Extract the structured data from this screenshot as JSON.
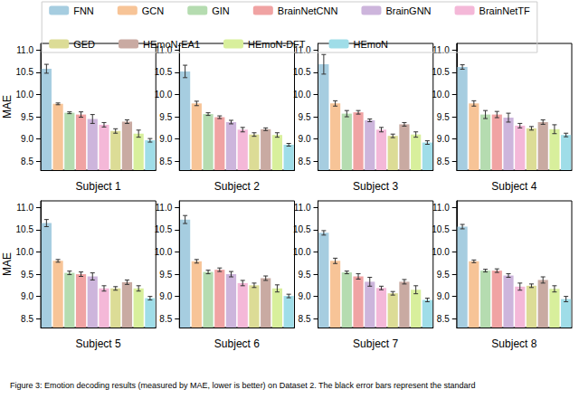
{
  "caption": "Figure 3: Emotion decoding results (measured by MAE, lower is better) on Dataset 2. The black error bars represent the standard",
  "chart_data": [
    {
      "type": "bar",
      "xlabel": "Subject 1",
      "ylabel": "MAE",
      "legend": "top",
      "tick_labels": "y",
      "grid": false,
      "categories": [
        "FNN",
        "GCN",
        "GIN",
        "BrainNetCNN",
        "BrainGNN",
        "BrainNetTF",
        "GED",
        "HEmoN-EA1",
        "HEmoN-DFT",
        "HEmoN"
      ],
      "colors": [
        "#a6cde0",
        "#f7c497",
        "#b5dcb0",
        "#f0a3a3",
        "#cdb5dc",
        "#f4b8d8",
        "#dcdc96",
        "#c9aaa2",
        "#d8ef9c",
        "#9fdde8"
      ],
      "values": [
        10.58,
        9.79,
        9.59,
        9.55,
        9.45,
        9.32,
        9.18,
        9.39,
        9.12,
        8.97
      ],
      "errors": [
        0.1,
        0.02,
        0.02,
        0.06,
        0.1,
        0.05,
        0.05,
        0.04,
        0.08,
        0.04
      ],
      "ylim": [
        8.3,
        11.15
      ],
      "yticks": [
        8.5,
        {
          "value": 9,
          "label": "9.0"
        },
        9.5,
        {
          "value": 10,
          "label": "10.0"
        },
        10.5,
        {
          "value": 11,
          "label": "11.0"
        }
      ]
    },
    {
      "type": "bar",
      "xlabel": "Subject 2",
      "legend": "top",
      "tick_labels": "y",
      "grid": false,
      "categories": [
        "FNN",
        "GCN",
        "GIN",
        "BrainNetCNN",
        "BrainGNN",
        "BrainNetTF",
        "GED",
        "HEmoN-EA1",
        "HEmoN-DFT",
        "HEmoN"
      ],
      "colors": [
        "#a6cde0",
        "#f7c497",
        "#b5dcb0",
        "#f0a3a3",
        "#cdb5dc",
        "#f4b8d8",
        "#dcdc96",
        "#c9aaa2",
        "#d8ef9c",
        "#9fdde8"
      ],
      "values": [
        10.52,
        9.8,
        9.56,
        9.49,
        9.38,
        9.21,
        9.1,
        9.22,
        9.09,
        8.87
      ],
      "errors": [
        0.14,
        0.05,
        0.03,
        0.03,
        0.04,
        0.05,
        0.04,
        0.03,
        0.05,
        0.03
      ],
      "ylim": [
        8.3,
        11.15
      ],
      "yticks": [
        8.5,
        {
          "value": 9,
          "label": "9.0"
        },
        9.5,
        {
          "value": 10,
          "label": "10.0"
        },
        10.5,
        {
          "value": 11,
          "label": "11.0"
        }
      ]
    },
    {
      "type": "bar",
      "xlabel": "Subject 3",
      "legend": "top",
      "tick_labels": "y",
      "grid": false,
      "categories": [
        "FNN",
        "GCN",
        "GIN",
        "BrainNetCNN",
        "BrainGNN",
        "BrainNetTF",
        "GED",
        "HEmoN-EA1",
        "HEmoN-DFT",
        "HEmoN"
      ],
      "colors": [
        "#a6cde0",
        "#f7c497",
        "#b5dcb0",
        "#f0a3a3",
        "#cdb5dc",
        "#f4b8d8",
        "#dcdc96",
        "#c9aaa2",
        "#d8ef9c",
        "#9fdde8"
      ],
      "values": [
        10.68,
        9.8,
        9.57,
        9.6,
        9.42,
        9.21,
        9.07,
        9.33,
        9.1,
        8.92
      ],
      "errors": [
        0.22,
        0.06,
        0.07,
        0.04,
        0.03,
        0.05,
        0.04,
        0.04,
        0.06,
        0.04
      ],
      "ylim": [
        8.3,
        11.15
      ],
      "yticks": [
        8.5,
        {
          "value": 9,
          "label": "9.0"
        },
        9.5,
        {
          "value": 10,
          "label": "10.0"
        },
        10.5,
        {
          "value": 11,
          "label": "11.0"
        }
      ]
    },
    {
      "type": "bar",
      "xlabel": "Subject 4",
      "legend": "top",
      "tick_labels": "y",
      "grid": false,
      "categories": [
        "FNN",
        "GCN",
        "GIN",
        "BrainNetCNN",
        "BrainGNN",
        "BrainNetTF",
        "GED",
        "HEmoN-EA1",
        "HEmoN-DFT",
        "HEmoN"
      ],
      "colors": [
        "#a6cde0",
        "#f7c497",
        "#b5dcb0",
        "#f0a3a3",
        "#cdb5dc",
        "#f4b8d8",
        "#dcdc96",
        "#c9aaa2",
        "#d8ef9c",
        "#9fdde8"
      ],
      "values": [
        10.62,
        9.8,
        9.55,
        9.55,
        9.48,
        9.3,
        9.24,
        9.38,
        9.22,
        9.09
      ],
      "errors": [
        0.05,
        0.06,
        0.09,
        0.07,
        0.1,
        0.05,
        0.04,
        0.05,
        0.1,
        0.04
      ],
      "ylim": [
        8.3,
        11.15
      ],
      "yticks": [
        8.5,
        {
          "value": 9,
          "label": "9.0"
        },
        9.5,
        {
          "value": 10,
          "label": "10.0"
        },
        10.5,
        {
          "value": 11,
          "label": "11.0"
        }
      ]
    },
    {
      "type": "bar",
      "xlabel": "Subject 5",
      "ylabel": "MAE",
      "legend": "top",
      "tick_labels": "y",
      "grid": false,
      "categories": [
        "FNN",
        "GCN",
        "GIN",
        "BrainNetCNN",
        "BrainGNN",
        "BrainNetTF",
        "GED",
        "HEmoN-EA1",
        "HEmoN-DFT",
        "HEmoN"
      ],
      "colors": [
        "#a6cde0",
        "#f7c497",
        "#b5dcb0",
        "#f0a3a3",
        "#cdb5dc",
        "#f4b8d8",
        "#dcdc96",
        "#c9aaa2",
        "#d8ef9c",
        "#9fdde8"
      ],
      "values": [
        10.65,
        9.8,
        9.53,
        9.5,
        9.45,
        9.18,
        9.18,
        9.32,
        9.18,
        8.96
      ],
      "errors": [
        0.08,
        0.03,
        0.04,
        0.05,
        0.08,
        0.06,
        0.04,
        0.05,
        0.06,
        0.04
      ],
      "ylim": [
        8.3,
        11.15
      ],
      "yticks": [
        8.5,
        {
          "value": 9,
          "label": "9.0"
        },
        9.5,
        {
          "value": 10,
          "label": "10.0"
        },
        10.5,
        {
          "value": 11,
          "label": "11.0"
        }
      ]
    },
    {
      "type": "bar",
      "xlabel": "Subject 6",
      "legend": "top",
      "tick_labels": "y",
      "grid": false,
      "categories": [
        "FNN",
        "GCN",
        "GIN",
        "BrainNetCNN",
        "BrainGNN",
        "BrainNetTF",
        "GED",
        "HEmoN-EA1",
        "HEmoN-DFT",
        "HEmoN"
      ],
      "colors": [
        "#a6cde0",
        "#f7c497",
        "#b5dcb0",
        "#f0a3a3",
        "#cdb5dc",
        "#f4b8d8",
        "#dcdc96",
        "#c9aaa2",
        "#d8ef9c",
        "#9fdde8"
      ],
      "values": [
        10.73,
        9.79,
        9.55,
        9.6,
        9.5,
        9.3,
        9.25,
        9.41,
        9.18,
        9.01
      ],
      "errors": [
        0.09,
        0.04,
        0.04,
        0.04,
        0.06,
        0.06,
        0.05,
        0.05,
        0.08,
        0.04
      ],
      "ylim": [
        8.3,
        11.15
      ],
      "yticks": [
        8.5,
        {
          "value": 9,
          "label": "9.0"
        },
        9.5,
        {
          "value": 10,
          "label": "10.0"
        },
        10.5,
        {
          "value": 11,
          "label": "11.0"
        }
      ]
    },
    {
      "type": "bar",
      "xlabel": "Subject 7",
      "legend": "top",
      "tick_labels": "y",
      "grid": false,
      "categories": [
        "FNN",
        "GCN",
        "GIN",
        "BrainNetCNN",
        "BrainGNN",
        "BrainNetTF",
        "GED",
        "HEmoN-EA1",
        "HEmoN-DFT",
        "HEmoN"
      ],
      "colors": [
        "#a6cde0",
        "#f7c497",
        "#b5dcb0",
        "#f0a3a3",
        "#cdb5dc",
        "#f4b8d8",
        "#dcdc96",
        "#c9aaa2",
        "#d8ef9c",
        "#9fdde8"
      ],
      "values": [
        10.43,
        9.8,
        9.54,
        9.45,
        9.33,
        9.19,
        9.07,
        9.33,
        9.15,
        8.92
      ],
      "errors": [
        0.05,
        0.06,
        0.03,
        0.06,
        0.1,
        0.04,
        0.04,
        0.05,
        0.09,
        0.04
      ],
      "ylim": [
        8.3,
        11.15
      ],
      "yticks": [
        8.5,
        {
          "value": 9,
          "label": "9.0"
        },
        9.5,
        {
          "value": 10,
          "label": "10.0"
        },
        10.5,
        {
          "value": 11,
          "label": "11.0"
        }
      ]
    },
    {
      "type": "bar",
      "xlabel": "Subject 8",
      "legend": "top",
      "tick_labels": "y",
      "grid": false,
      "categories": [
        "FNN",
        "GCN",
        "GIN",
        "BrainNetCNN",
        "BrainGNN",
        "BrainNetTF",
        "GED",
        "HEmoN-EA1",
        "HEmoN-DFT",
        "HEmoN"
      ],
      "colors": [
        "#a6cde0",
        "#f7c497",
        "#b5dcb0",
        "#f0a3a3",
        "#cdb5dc",
        "#f4b8d8",
        "#dcdc96",
        "#c9aaa2",
        "#d8ef9c",
        "#9fdde8"
      ],
      "values": [
        10.57,
        9.79,
        9.58,
        9.58,
        9.47,
        9.22,
        9.24,
        9.37,
        9.17,
        8.94
      ],
      "errors": [
        0.05,
        0.03,
        0.03,
        0.04,
        0.04,
        0.08,
        0.04,
        0.07,
        0.07,
        0.06
      ],
      "ylim": [
        8.3,
        11.15
      ],
      "yticks": [
        8.5,
        {
          "value": 9,
          "label": "9.0"
        },
        9.5,
        {
          "value": 10,
          "label": "10.0"
        },
        10.5,
        {
          "value": 11,
          "label": "11.0"
        }
      ]
    }
  ]
}
